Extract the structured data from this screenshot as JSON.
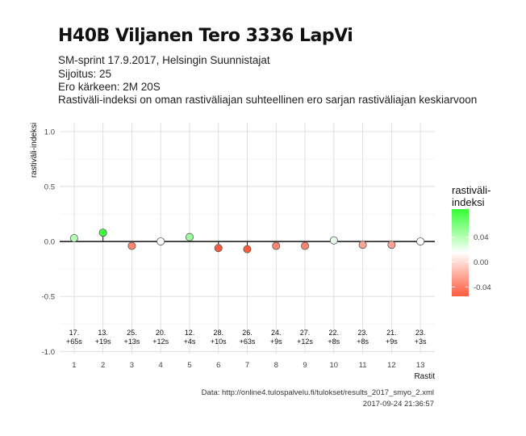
{
  "title": "H40B Viljanen Tero 3336 LapVi",
  "subtitle_lines": [
    "SM-sprint 17.9.2017, Helsingin Suunnistajat",
    "Sijoitus: 25",
    "Ero kärkeen: 2M 20S",
    "Rastiväli-indeksi on oman rastiväliajan suhteellinen ero sarjan rastiväliajan keskiarvoon"
  ],
  "caption": {
    "source": "Data: http://online4.tulospalvelu.fi/tulokset/results_2017_smyo_2.xml",
    "timestamp": "2017-09-24 21:36:57"
  },
  "legend": {
    "title_line1": "rastiväli-",
    "title_line2": "indeksi",
    "ticks": [
      "0.04",
      "0.00",
      "-0.04"
    ],
    "tick_values": [
      0.04,
      0.0,
      -0.04
    ],
    "range": [
      -0.055,
      0.085
    ],
    "colors": {
      "high": "#33ff33",
      "mid": "#ffffff",
      "low": "#ff5a3c"
    }
  },
  "chart_data": {
    "type": "scatter",
    "xlabel": "Rastit",
    "ylabel": "rastiväli-indeksi",
    "xlim": [
      0.5,
      13.5
    ],
    "ylim": [
      -1.0,
      1.0
    ],
    "x_ticks": [
      1,
      2,
      3,
      4,
      5,
      6,
      7,
      8,
      9,
      10,
      11,
      12,
      13
    ],
    "y_ticks": [
      -1.0,
      -0.5,
      0.0,
      0.5,
      1.0
    ],
    "y_tick_labels": [
      "-1.0",
      "-0.5",
      "0.0",
      "0.5",
      "1.0"
    ],
    "reference_line": 0,
    "grid": true,
    "points": [
      {
        "x": 1,
        "y": 0.03,
        "label1": "17.",
        "label2": "+65s"
      },
      {
        "x": 2,
        "y": 0.08,
        "label1": "13.",
        "label2": "+19s"
      },
      {
        "x": 3,
        "y": -0.04,
        "label1": "25.",
        "label2": "+13s"
      },
      {
        "x": 4,
        "y": 0.0,
        "label1": "20.",
        "label2": "+12s"
      },
      {
        "x": 5,
        "y": 0.04,
        "label1": "12.",
        "label2": "+4s"
      },
      {
        "x": 6,
        "y": -0.06,
        "label1": "28.",
        "label2": "+10s"
      },
      {
        "x": 7,
        "y": -0.07,
        "label1": "26.",
        "label2": "+63s"
      },
      {
        "x": 8,
        "y": -0.04,
        "label1": "24.",
        "label2": "+9s"
      },
      {
        "x": 9,
        "y": -0.04,
        "label1": "27.",
        "label2": "+12s"
      },
      {
        "x": 10,
        "y": 0.01,
        "label1": "22.",
        "label2": "+8s"
      },
      {
        "x": 11,
        "y": -0.03,
        "label1": "23.",
        "label2": "+8s"
      },
      {
        "x": 12,
        "y": -0.03,
        "label1": "21.",
        "label2": "+9s"
      },
      {
        "x": 13,
        "y": 0.0,
        "label1": "23.",
        "label2": "+3s"
      }
    ]
  }
}
